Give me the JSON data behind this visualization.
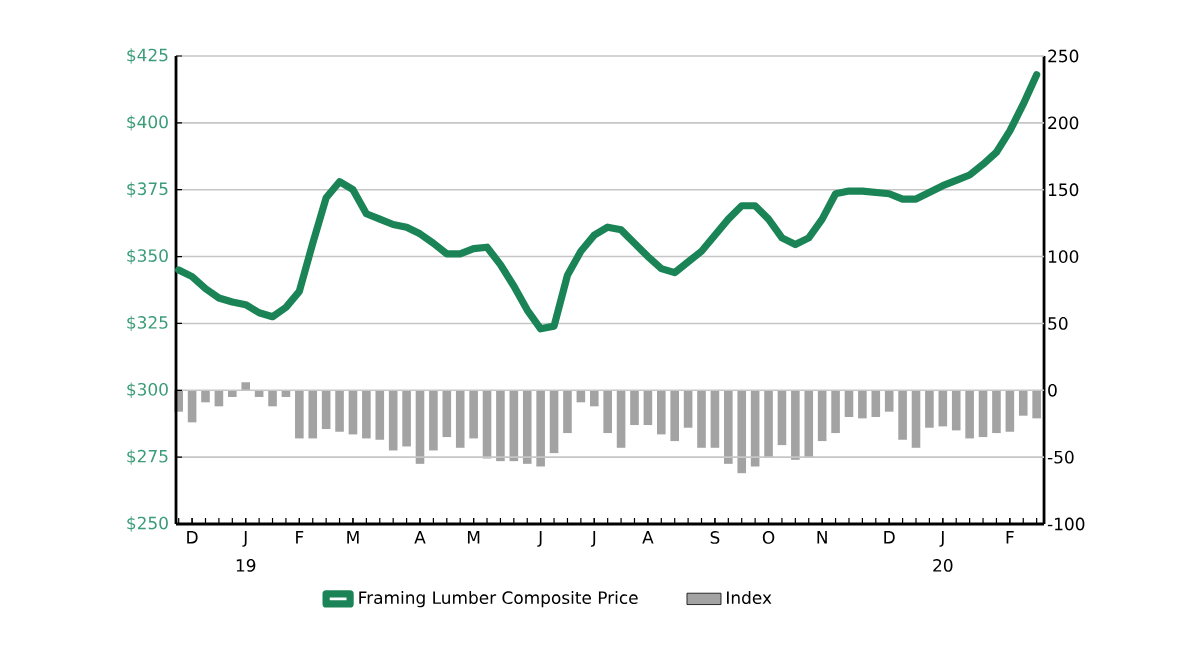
{
  "chart_data": {
    "type": "line",
    "categories": [
      null,
      "D",
      null,
      null,
      null,
      "J",
      null,
      null,
      null,
      "F",
      null,
      null,
      null,
      "M",
      null,
      null,
      null,
      null,
      "A",
      null,
      null,
      null,
      "M",
      null,
      null,
      null,
      null,
      "J",
      null,
      null,
      null,
      "J",
      null,
      null,
      null,
      "A",
      null,
      null,
      null,
      null,
      "S",
      null,
      null,
      null,
      "O",
      null,
      null,
      null,
      "N",
      null,
      null,
      null,
      null,
      "D",
      null,
      null,
      null,
      "J",
      null,
      null,
      null,
      null,
      "F",
      null,
      null
    ],
    "ylim": [
      250,
      425
    ],
    "yticks": [
      {
        "value": 250,
        "label": "$250"
      },
      {
        "value": 275,
        "label": "$275"
      },
      {
        "value": 300,
        "label": "$300"
      },
      {
        "value": 325,
        "label": "$325"
      },
      {
        "value": 350,
        "label": "$350"
      },
      {
        "value": 375,
        "label": "$375"
      },
      {
        "value": 400,
        "label": "$400"
      },
      {
        "value": 425,
        "label": "$425"
      }
    ],
    "y2lim": [
      -100,
      250
    ],
    "y2ticks": [
      -100,
      -50,
      0,
      50,
      100,
      150,
      200,
      250
    ],
    "grid": "y",
    "legend": "bottom",
    "annotations": [
      "19",
      "20"
    ],
    "series": [
      {
        "name": "Framing Lumber Composite Price",
        "color": "#1a8456",
        "values": [
          345,
          342.5,
          338,
          334.5,
          333,
          332,
          329,
          327.5,
          331,
          337,
          355,
          372,
          378,
          375,
          366,
          364,
          362,
          361,
          358.5,
          355,
          351,
          351,
          353,
          353.5,
          347,
          339,
          330,
          323,
          324,
          343,
          352,
          358,
          361,
          360,
          355,
          350,
          345.5,
          344,
          348,
          352,
          358,
          364,
          369,
          369,
          364,
          357,
          354.5,
          357,
          364,
          373.5,
          374.5,
          374.5,
          374,
          373.5,
          371.5,
          371.5,
          374,
          376.5,
          378.5,
          380.5,
          384.5,
          389,
          397,
          407,
          418
        ]
      },
      {
        "name": "Index",
        "type": "bar",
        "axis": "y2",
        "color": "#a3a3a3",
        "values": [
          -16,
          -24,
          -9,
          -12,
          -5,
          6,
          -5,
          -12,
          -5,
          -36,
          -36,
          -29,
          -31,
          -33,
          -36,
          -37,
          -45,
          -42,
          -55,
          -45,
          -35,
          -43,
          -36,
          -51,
          -53,
          -53,
          -55,
          -57,
          -47,
          -32,
          -9,
          -12,
          -32,
          -43,
          -26,
          -26,
          -33,
          -38,
          -28,
          -43,
          -43,
          -55,
          -62,
          -57,
          -50,
          -41,
          -52,
          -50,
          -38,
          -32,
          -20,
          -21,
          -20,
          -16,
          -37,
          -43,
          -28,
          -27,
          -30,
          -36,
          -35,
          -32,
          -31,
          -19,
          -21
        ]
      }
    ]
  }
}
